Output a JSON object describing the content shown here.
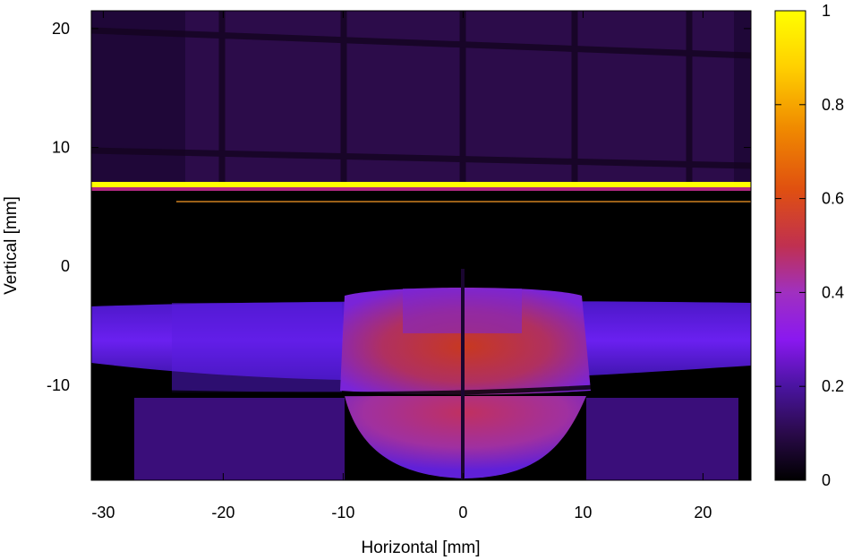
{
  "chart_data": {
    "type": "heatmap",
    "title": "",
    "xlabel": "Horizontal [mm]",
    "ylabel": "Vertical [mm]",
    "xlim": [
      -31,
      24
    ],
    "ylim": [
      -18,
      21.5
    ],
    "xticks": [
      -30,
      -20,
      -10,
      0,
      10,
      20
    ],
    "yticks": [
      -10,
      0,
      10,
      20
    ],
    "colorbar": {
      "range": [
        0,
        1
      ],
      "ticks": [
        0,
        0.2,
        0.4,
        0.6,
        0.8,
        1
      ],
      "colormap": [
        "#000000",
        "#2a0a4a",
        "#4a14a0",
        "#8a18f0",
        "#a030c0",
        "#c03050",
        "#e05010",
        "#f08a00",
        "#ffd000",
        "#ffff00"
      ]
    },
    "grid": false,
    "features": [
      {
        "name": "upper background",
        "y_range": [
          6.5,
          21.5
        ],
        "x_range": [
          -31,
          24
        ],
        "intensity": 0.08
      },
      {
        "name": "bright stripe",
        "y_range": [
          6.6,
          7.2
        ],
        "x_range": [
          -31,
          24
        ],
        "intensity": 1.0
      },
      {
        "name": "thin line",
        "y": 5.6,
        "x_range": [
          -24,
          24
        ],
        "intensity": 0.55
      },
      {
        "name": "dark gap",
        "y_range": [
          -3,
          5.5
        ],
        "x_range": [
          -31,
          24
        ],
        "intensity": 0.0
      },
      {
        "name": "beam halo",
        "y_range": [
          -10.5,
          -3
        ],
        "x_range": [
          -31,
          24
        ],
        "intensity": 0.25
      },
      {
        "name": "beam core",
        "y_range": [
          -9.5,
          -1.5
        ],
        "x_range": [
          -10,
          10
        ],
        "intensity": 0.52
      },
      {
        "name": "lower lobe",
        "y_range": [
          -17.5,
          -10.5
        ],
        "x_range": [
          -10,
          10
        ],
        "intensity": 0.5
      },
      {
        "name": "lower background",
        "y_range": [
          -18,
          -10.5
        ],
        "x_range": [
          -31,
          24
        ],
        "intensity": 0.12
      }
    ]
  }
}
